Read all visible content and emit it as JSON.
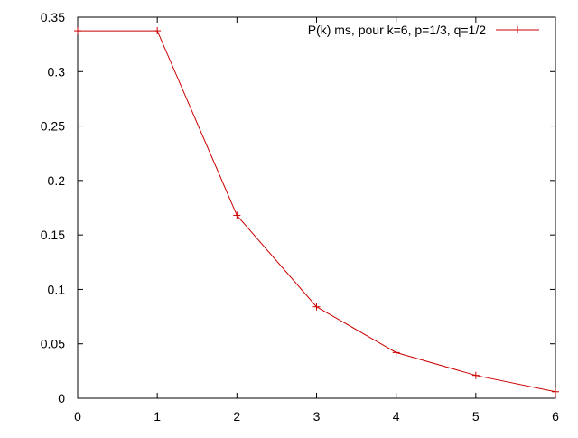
{
  "chart_data": {
    "type": "line",
    "title": "",
    "xlabel": "",
    "ylabel": "",
    "xlim": [
      0,
      6
    ],
    "ylim": [
      0,
      0.35
    ],
    "x_ticks": [
      0,
      1,
      2,
      3,
      4,
      5,
      6
    ],
    "y_ticks": [
      0,
      0.05,
      0.1,
      0.15,
      0.2,
      0.25,
      0.3,
      0.35
    ],
    "x_tick_labels": [
      "0",
      "1",
      "2",
      "3",
      "4",
      "5",
      "6"
    ],
    "y_tick_labels": [
      "0",
      "0.05",
      "0.1",
      "0.15",
      "0.2",
      "0.25",
      "0.3",
      "0.35"
    ],
    "grid": false,
    "legend_position": "top-right",
    "series": [
      {
        "name": "P(k) ms, pour k=6, p=1/3, q=1/2",
        "color": "#cc0000",
        "marker": "plus",
        "x": [
          0,
          1,
          2,
          3,
          4,
          5,
          6
        ],
        "y": [
          0.3375,
          0.3375,
          0.168,
          0.084,
          0.042,
          0.021,
          0.006
        ]
      }
    ]
  }
}
